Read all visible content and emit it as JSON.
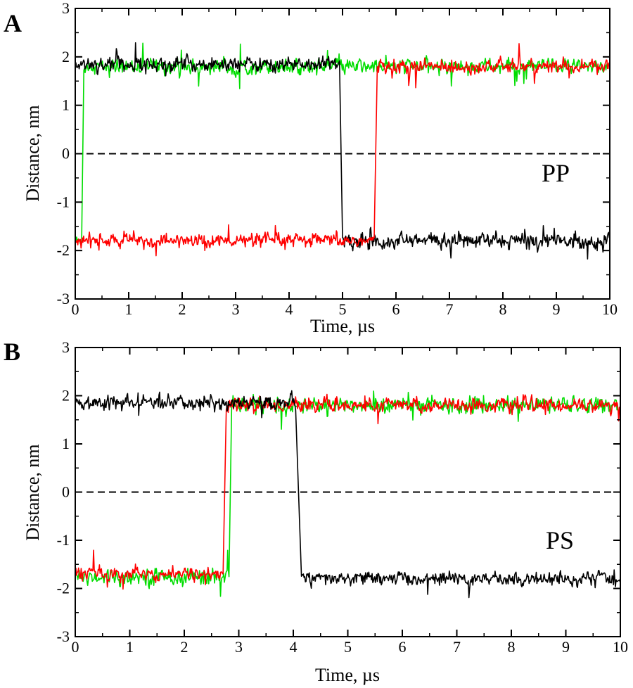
{
  "chart_data": [
    {
      "type": "line",
      "panel_label": "A",
      "annotation": "PP",
      "xlabel": "Time, µs",
      "ylabel": "Distance, nm",
      "xlim": [
        0,
        10
      ],
      "ylim": [
        -3,
        3
      ],
      "xticks": [
        "0",
        "1",
        "2",
        "3",
        "4",
        "5",
        "6",
        "7",
        "8",
        "9",
        "10"
      ],
      "yticks": [
        "-3",
        "-2",
        "-1",
        "0",
        "1",
        "2",
        "3"
      ],
      "reference_line": {
        "y": 0,
        "style": "dashed"
      },
      "series": [
        {
          "color": "#00dd00",
          "segments": [
            {
              "x_start": 0.0,
              "x_end": 0.12,
              "level": -1.8,
              "noise": 0.15
            },
            {
              "x_start": 0.16,
              "x_end": 10.0,
              "level": 1.8,
              "noise": 0.18
            }
          ]
        },
        {
          "color": "#000000",
          "segments": [
            {
              "x_start": 0.0,
              "x_end": 4.95,
              "level": 1.85,
              "noise": 0.18
            },
            {
              "x_start": 5.0,
              "x_end": 10.0,
              "level": -1.8,
              "noise": 0.2
            }
          ]
        },
        {
          "color": "#ff0000",
          "segments": [
            {
              "x_start": 0.0,
              "x_end": 5.6,
              "level": -1.8,
              "noise": 0.17
            },
            {
              "x_start": 5.65,
              "x_end": 10.0,
              "level": 1.8,
              "noise": 0.17
            }
          ]
        }
      ]
    },
    {
      "type": "line",
      "panel_label": "B",
      "annotation": "PS",
      "xlabel": "Time, µs",
      "ylabel": "Distance, nm",
      "xlim": [
        0,
        10
      ],
      "ylim": [
        -3,
        3
      ],
      "xticks": [
        "0",
        "1",
        "2",
        "3",
        "4",
        "5",
        "6",
        "7",
        "8",
        "9",
        "10"
      ],
      "yticks": [
        "-3",
        "-2",
        "-1",
        "0",
        "1",
        "2",
        "3"
      ],
      "reference_line": {
        "y": 0,
        "style": "dashed"
      },
      "series": [
        {
          "color": "#00dd00",
          "segments": [
            {
              "x_start": 0.0,
              "x_end": 2.82,
              "level": -1.75,
              "noise": 0.2
            },
            {
              "x_start": 2.87,
              "x_end": 10.0,
              "level": 1.8,
              "noise": 0.2
            }
          ]
        },
        {
          "color": "#ff0000",
          "segments": [
            {
              "x_start": 0.0,
              "x_end": 2.72,
              "level": -1.7,
              "noise": 0.17
            },
            {
              "x_start": 2.77,
              "x_end": 10.0,
              "level": 1.8,
              "noise": 0.17
            }
          ]
        },
        {
          "color": "#000000",
          "segments": [
            {
              "x_start": 0.0,
              "x_end": 4.05,
              "level": 1.85,
              "noise": 0.18
            },
            {
              "x_start": 4.15,
              "x_end": 10.0,
              "level": -1.8,
              "noise": 0.17
            }
          ]
        }
      ]
    }
  ]
}
